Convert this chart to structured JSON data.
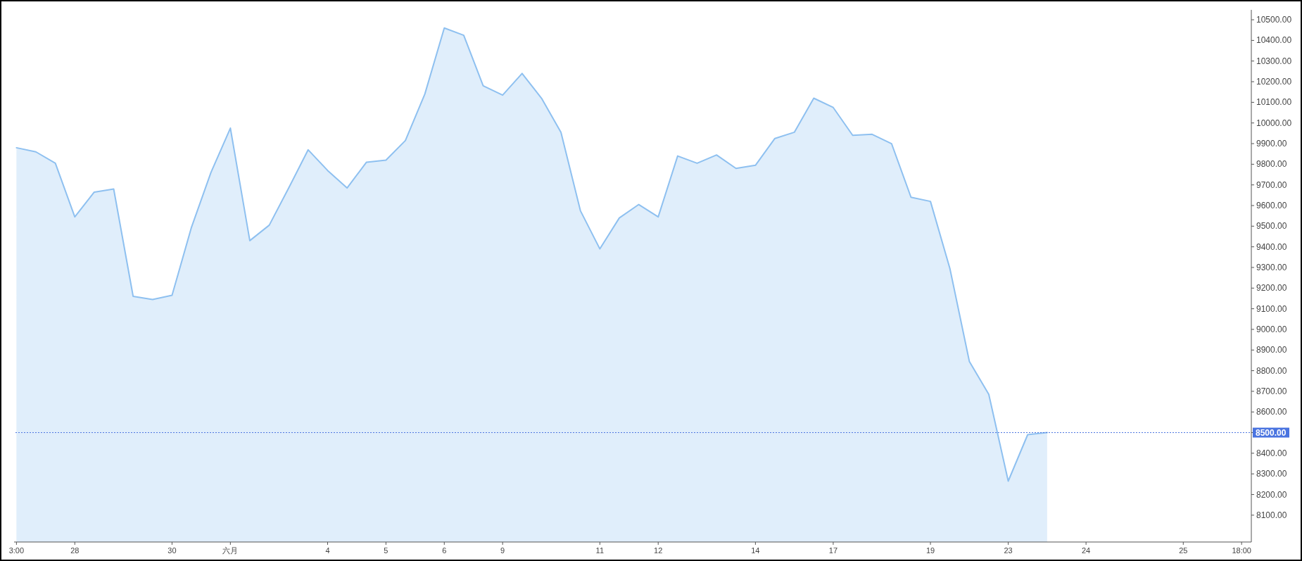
{
  "chart_data": {
    "type": "area",
    "categories": [
      "3:00",
      null,
      null,
      "28",
      null,
      null,
      null,
      null,
      "30",
      null,
      null,
      "六月",
      null,
      null,
      null,
      null,
      "4",
      null,
      null,
      "5",
      null,
      null,
      "6",
      null,
      null,
      "9",
      null,
      null,
      null,
      null,
      "11",
      null,
      null,
      "12",
      null,
      null,
      null,
      null,
      "14",
      null,
      null,
      null,
      "17",
      null,
      null,
      null,
      null,
      "19",
      null,
      null,
      null,
      "23",
      null,
      null,
      null,
      "24",
      null,
      null,
      null,
      null,
      "25",
      null,
      null,
      "18:00"
    ],
    "series": [
      {
        "color": "#8ec0f0",
        "values": [
          9880,
          9860,
          9805,
          9545,
          9665,
          9680,
          9160,
          9145,
          9165,
          9495,
          9760,
          9975,
          9430,
          9505,
          9685,
          9870,
          9770,
          9685,
          9810,
          9820,
          9915,
          10140,
          10460,
          10425,
          10180,
          10135,
          10240,
          10120,
          9955,
          9575,
          9390,
          9540,
          9605,
          9545,
          9840,
          9805,
          9845,
          9780,
          9795,
          9925,
          9955,
          10120,
          10075,
          9940,
          9945,
          9900,
          9640,
          9620,
          9295,
          8845,
          8685,
          8265,
          8490,
          8500,
          null,
          null,
          null,
          null,
          null,
          null,
          null,
          null,
          null,
          null
        ]
      }
    ],
    "ylim": [
      7970,
      10548
    ],
    "yticks": [
      {
        "value": 8100,
        "label": "8100.00"
      },
      {
        "value": 8200,
        "label": "8200.00"
      },
      {
        "value": 8300,
        "label": "8300.00"
      },
      {
        "value": 8400,
        "label": "8400.00"
      },
      {
        "value": 8500,
        "label": null
      },
      {
        "value": 8600,
        "label": "8600.00"
      },
      {
        "value": 8700,
        "label": "8700.00"
      },
      {
        "value": 8800,
        "label": "8800.00"
      },
      {
        "value": 8900,
        "label": "8900.00"
      },
      {
        "value": 9000,
        "label": "9000.00"
      },
      {
        "value": 9100,
        "label": "9100.00"
      },
      {
        "value": 9200,
        "label": "9200.00"
      },
      {
        "value": 9300,
        "label": "9300.00"
      },
      {
        "value": 9400,
        "label": "9400.00"
      },
      {
        "value": 9500,
        "label": "9500.00"
      },
      {
        "value": 9600,
        "label": "9600.00"
      },
      {
        "value": 9700,
        "label": "9700.00"
      },
      {
        "value": 9800,
        "label": "9800.00"
      },
      {
        "value": 9900,
        "label": "9900.00"
      },
      {
        "value": 10000,
        "label": "10000.00"
      },
      {
        "value": 10100,
        "label": "10100.00"
      },
      {
        "value": 10200,
        "label": "10200.00"
      },
      {
        "value": 10300,
        "label": "10300.00"
      },
      {
        "value": 10400,
        "label": "10400.00"
      },
      {
        "value": 10500,
        "label": "10500.00"
      }
    ],
    "ref_lines": [
      {
        "axis": "y",
        "value": 8500,
        "label": "8500.00",
        "color": "#4a74e0",
        "line_style": "dotted"
      }
    ],
    "grid": false
  }
}
